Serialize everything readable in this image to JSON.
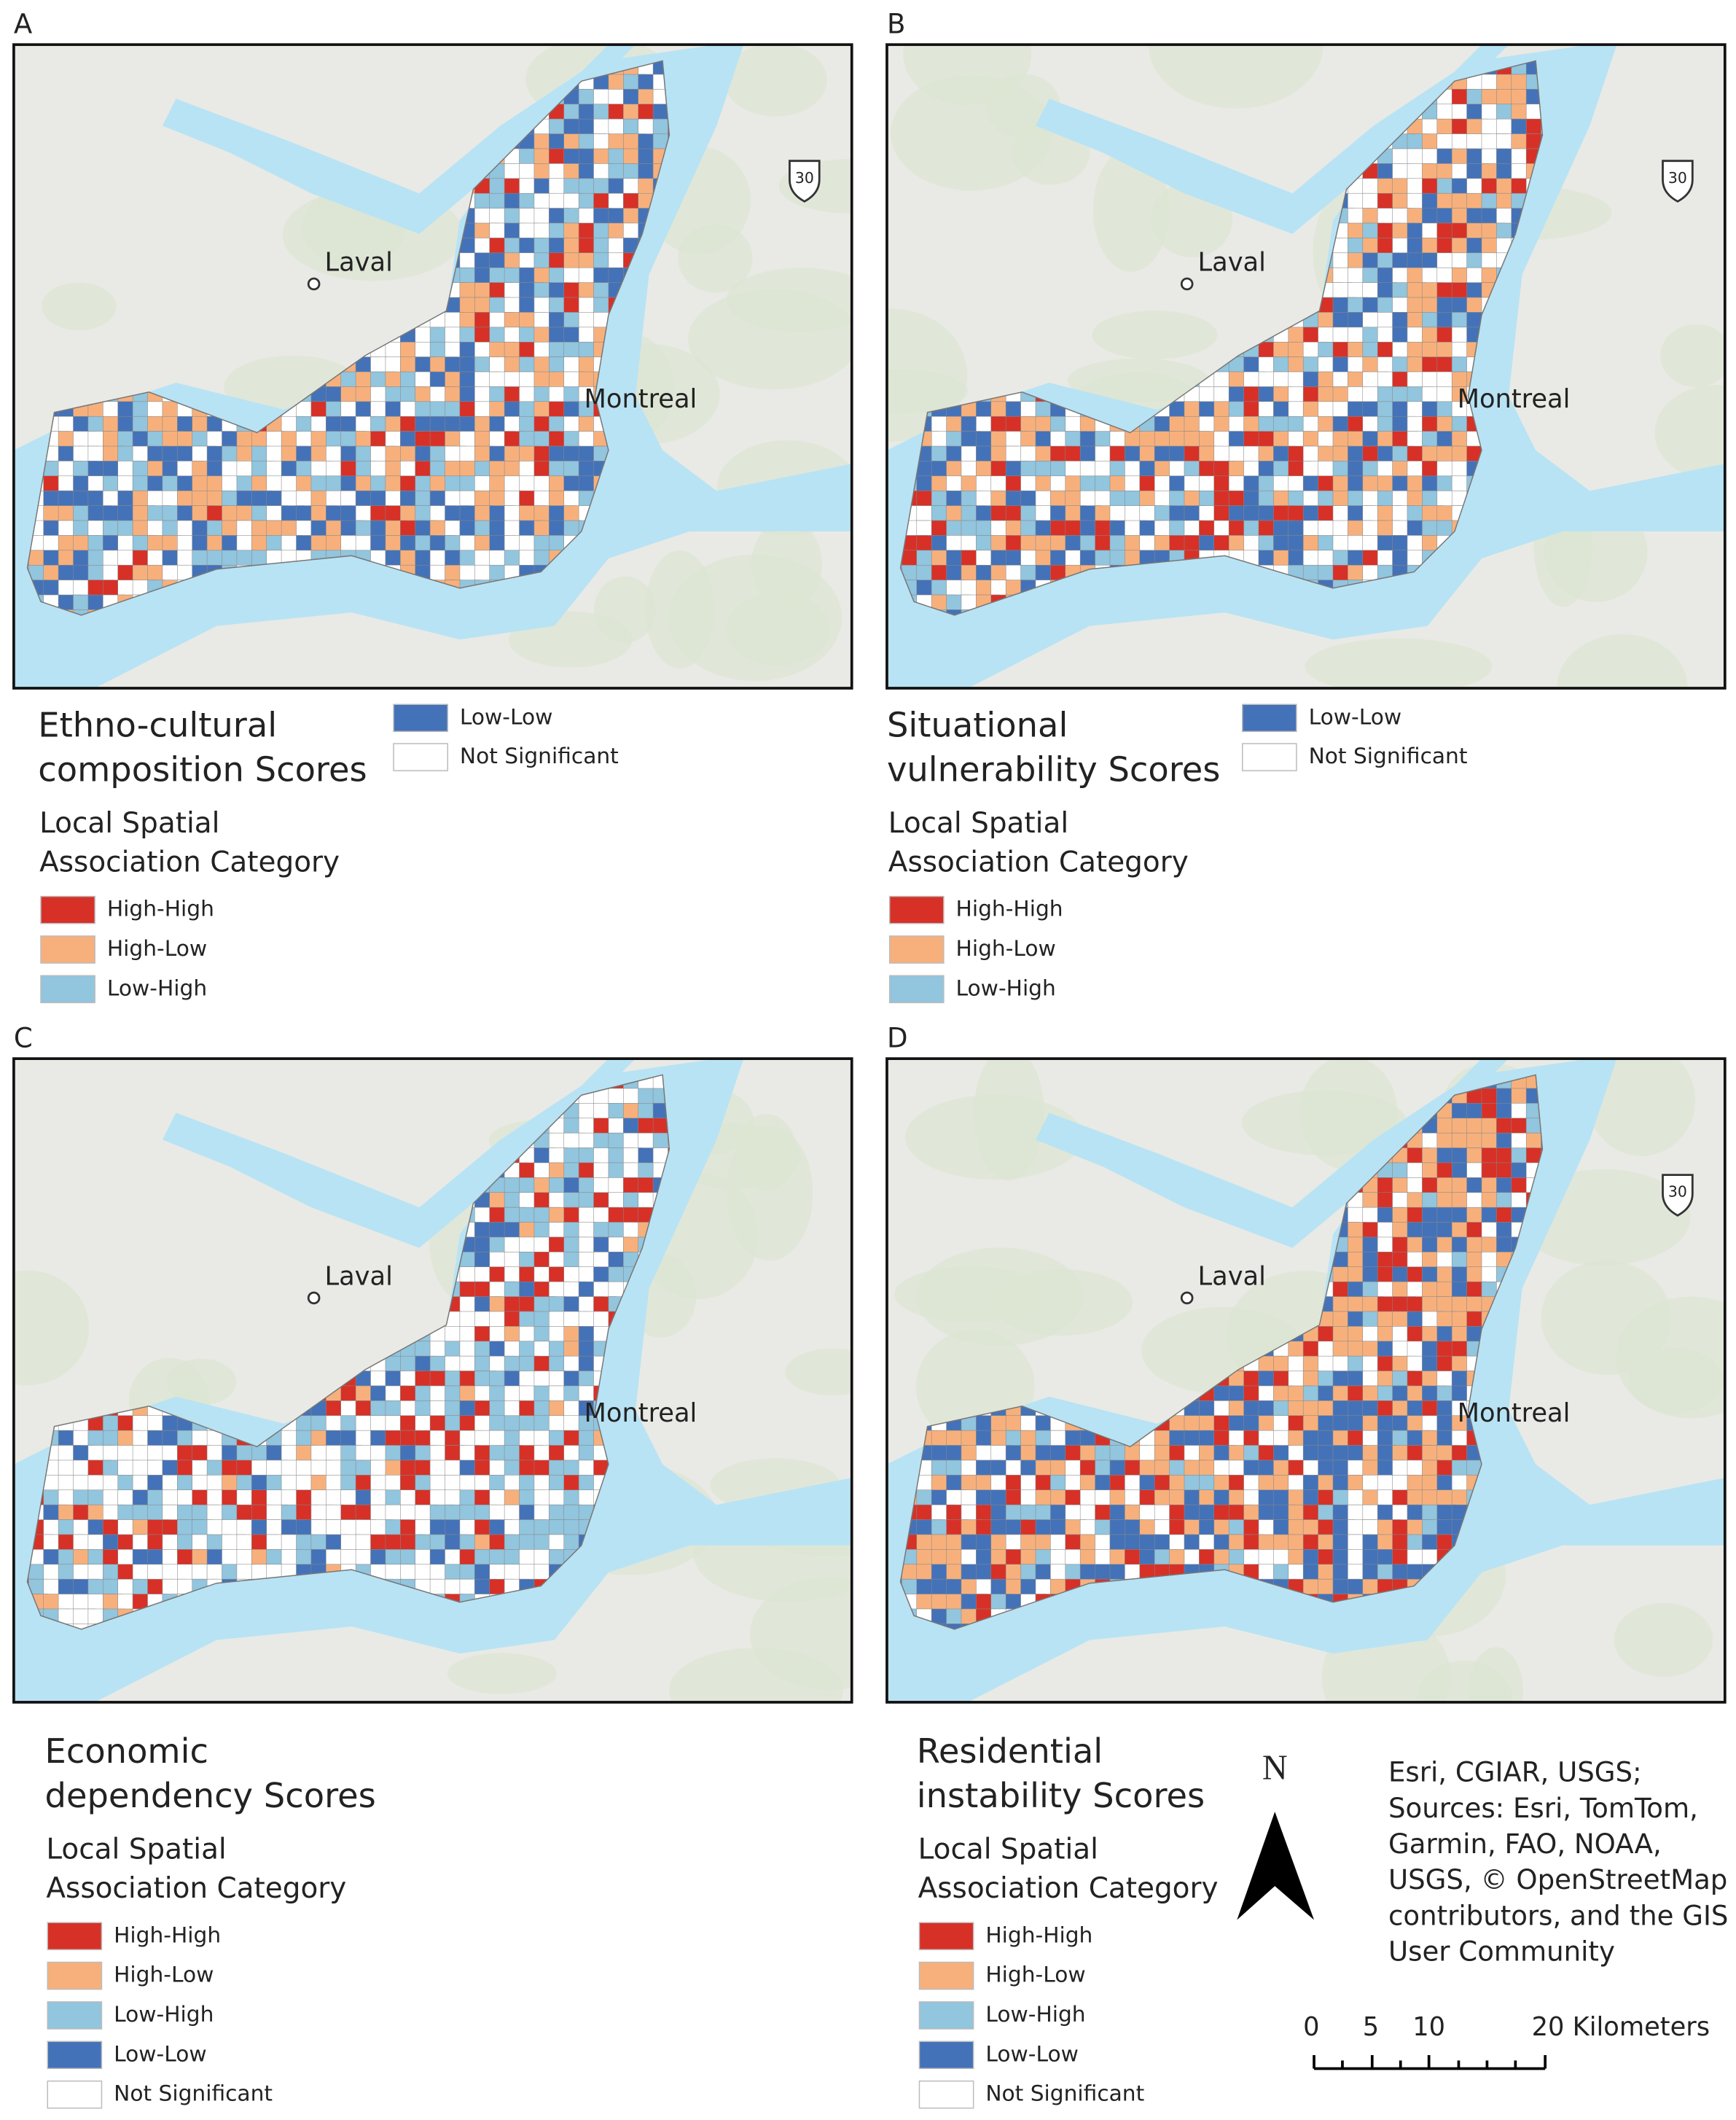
{
  "panels": [
    {
      "label": "A",
      "title": [
        "Ethno-cultural",
        "composition Scores"
      ],
      "legend_title": [
        "Local Spatial",
        "Association Category"
      ],
      "legend": [
        {
          "label": "High-High",
          "color": "#d73027"
        },
        {
          "label": "High-Low",
          "color": "#f7b07c"
        },
        {
          "label": "Low-High",
          "color": "#92c5de"
        },
        {
          "label": "Low-Low",
          "color": "#4472b8"
        },
        {
          "label": "Not Significant",
          "color": "#ffffff"
        }
      ],
      "places": [
        "Laval",
        "Montreal"
      ],
      "highway": "30"
    },
    {
      "label": "B",
      "title": [
        "Situational",
        "vulnerability Scores"
      ],
      "legend_title": [
        "Local Spatial",
        "Association Category"
      ],
      "legend": [
        {
          "label": "High-High",
          "color": "#d73027"
        },
        {
          "label": "High-Low",
          "color": "#f7b07c"
        },
        {
          "label": "Low-High",
          "color": "#92c5de"
        },
        {
          "label": "Low-Low",
          "color": "#4472b8"
        },
        {
          "label": "Not Significant",
          "color": "#ffffff"
        }
      ],
      "places": [
        "Laval",
        "Montreal"
      ],
      "highway": "30"
    },
    {
      "label": "C",
      "title": [
        "Economic",
        "dependency Scores"
      ],
      "legend_title": [
        "Local Spatial",
        "Association Category"
      ],
      "legend": [
        {
          "label": "High-High",
          "color": "#d73027"
        },
        {
          "label": "High-Low",
          "color": "#f7b07c"
        },
        {
          "label": "Low-High",
          "color": "#92c5de"
        },
        {
          "label": "Low-Low",
          "color": "#4472b8"
        },
        {
          "label": "Not Significant",
          "color": "#ffffff"
        }
      ],
      "places": [
        "Laval",
        "Montreal"
      ]
    },
    {
      "label": "D",
      "title": [
        "Residential",
        "instability Scores"
      ],
      "legend_title": [
        "Local Spatial",
        "Association Category"
      ],
      "legend": [
        {
          "label": "High-High",
          "color": "#d73027"
        },
        {
          "label": "High-Low",
          "color": "#f7b07c"
        },
        {
          "label": "Low-High",
          "color": "#92c5de"
        },
        {
          "label": "Low-Low",
          "color": "#4472b8"
        },
        {
          "label": "Not Significant",
          "color": "#ffffff"
        }
      ],
      "places": [
        "Laval",
        "Montreal"
      ],
      "highway": "30"
    }
  ],
  "north": "N",
  "attribution": [
    "Esri, CGIAR, USGS;",
    "Sources: Esri, TomTom,",
    "Garmin, FAO, NOAA,",
    "USGS, © OpenStreetMap",
    "contributors, and the GIS",
    "User Community"
  ],
  "scale": [
    "0",
    "5",
    "10",
    "20 Kilometers"
  ]
}
